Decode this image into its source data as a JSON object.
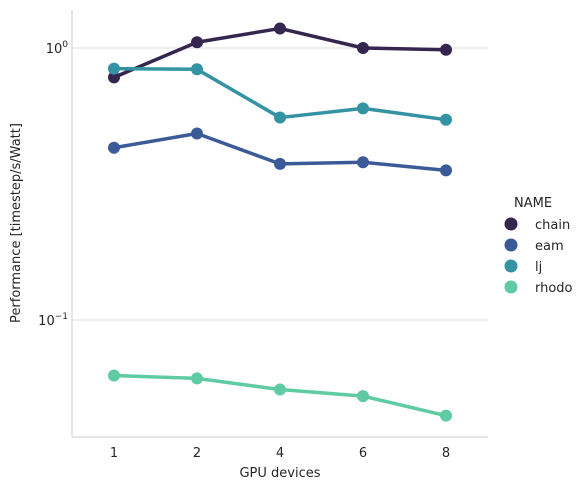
{
  "chart_data": {
    "type": "line",
    "xlabel": "GPU devices",
    "ylabel": "Performance [timestep/s/Watt]",
    "yscale": "log",
    "ylim": [
      0.04,
      1.4
    ],
    "x": [
      "1",
      "2",
      "4",
      "6",
      "8"
    ],
    "yticks": [
      {
        "value": 1,
        "base": "10",
        "exp": "0"
      },
      {
        "value": 0.1,
        "base": "10",
        "exp": "−1"
      }
    ],
    "grid": "horizontal",
    "legend": {
      "title": "NAME",
      "position": "right"
    },
    "series": [
      {
        "name": "chain",
        "color": "#35264f",
        "values": [
          0.78,
          1.05,
          1.18,
          1.0,
          0.985
        ]
      },
      {
        "name": "eam",
        "color": "#3b5b98",
        "values": [
          0.43,
          0.485,
          0.375,
          0.38,
          0.355
        ]
      },
      {
        "name": "lj",
        "color": "#3493a2",
        "values": [
          0.84,
          0.835,
          0.555,
          0.6,
          0.545
        ]
      },
      {
        "name": "rhodo",
        "color": "#5ecba3",
        "values": [
          0.0625,
          0.061,
          0.0555,
          0.0525,
          0.0445
        ]
      }
    ]
  }
}
